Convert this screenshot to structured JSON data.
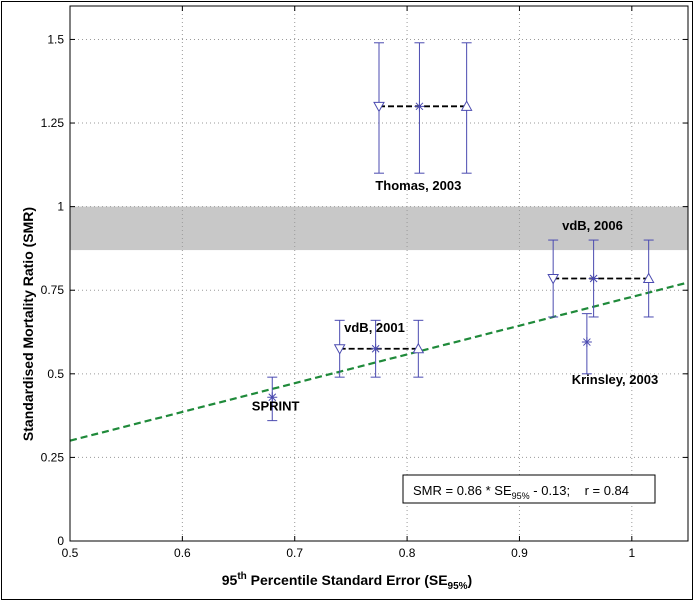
{
  "chart_data": {
    "type": "scatter",
    "xlabel": {
      "pre": "95",
      "sup": "th",
      "mid": " Percentile Standard Error (SE",
      "sub": "95%",
      "post": ")"
    },
    "ylabel": "Standardised Mortality Ratio (SMR)",
    "xlim": [
      0.5,
      1.05
    ],
    "ylim": [
      0,
      1.6
    ],
    "xticks": [
      {
        "value": 0.5,
        "label": "0.5"
      },
      {
        "value": 0.6,
        "label": "0.6"
      },
      {
        "value": 0.7,
        "label": "0.7"
      },
      {
        "value": 0.8,
        "label": "0.8"
      },
      {
        "value": 0.9,
        "label": "0.9"
      },
      {
        "value": 1.0,
        "label": "1"
      }
    ],
    "yticks": [
      {
        "value": 0,
        "label": "0"
      },
      {
        "value": 0.25,
        "label": "0.25"
      },
      {
        "value": 0.5,
        "label": "0.5"
      },
      {
        "value": 0.75,
        "label": "0.75"
      },
      {
        "value": 1.0,
        "label": "1"
      },
      {
        "value": 1.25,
        "label": "1.25"
      },
      {
        "value": 1.5,
        "label": "1.5"
      }
    ],
    "grid": true,
    "band": {
      "y0": 0.87,
      "y1": 1.0,
      "color": "#c8c8c8"
    },
    "colors": {
      "axis": "#000000",
      "grid": "#9a9a9a",
      "marker": "#4b4bb0",
      "connector": "#000000",
      "fit": "#1f8a3a"
    },
    "studies": [
      {
        "label": "SPRINT",
        "label_at": {
          "x": 0.683,
          "y": 0.39
        },
        "points": [
          {
            "x": 0.68,
            "y": 0.43,
            "lo": 0.36,
            "hi": 0.49,
            "marker": "star"
          }
        ]
      },
      {
        "label": "vdB, 2001",
        "label_at": {
          "x": 0.771,
          "y": 0.625
        },
        "points": [
          {
            "x": 0.74,
            "y": 0.575,
            "lo": 0.49,
            "hi": 0.66,
            "marker": "triangle-down"
          },
          {
            "x": 0.772,
            "y": 0.575,
            "lo": 0.49,
            "hi": 0.66,
            "marker": "star"
          },
          {
            "x": 0.81,
            "y": 0.575,
            "lo": 0.49,
            "hi": 0.66,
            "marker": "triangle-up"
          }
        ],
        "connect": true
      },
      {
        "label": "Thomas, 2003",
        "label_at": {
          "x": 0.81,
          "y": 1.05
        },
        "points": [
          {
            "x": 0.775,
            "y": 1.3,
            "lo": 1.1,
            "hi": 1.49,
            "marker": "triangle-down"
          },
          {
            "x": 0.811,
            "y": 1.3,
            "lo": 1.1,
            "hi": 1.49,
            "marker": "star"
          },
          {
            "x": 0.853,
            "y": 1.3,
            "lo": 1.1,
            "hi": 1.49,
            "marker": "triangle-up"
          }
        ],
        "connect": true
      },
      {
        "label": "vdB, 2006",
        "label_at": {
          "x": 0.965,
          "y": 0.93
        },
        "points": [
          {
            "x": 0.93,
            "y": 0.785,
            "lo": 0.67,
            "hi": 0.9,
            "marker": "triangle-down"
          },
          {
            "x": 0.966,
            "y": 0.785,
            "lo": 0.67,
            "hi": 0.9,
            "marker": "star"
          },
          {
            "x": 1.015,
            "y": 0.785,
            "lo": 0.67,
            "hi": 0.9,
            "marker": "triangle-up"
          }
        ],
        "connect": true
      },
      {
        "label": "Krinsley, 2003",
        "label_at": {
          "x": 0.985,
          "y": 0.47
        },
        "points": [
          {
            "x": 0.96,
            "y": 0.595,
            "lo": 0.5,
            "hi": 0.68,
            "marker": "star"
          }
        ]
      }
    ],
    "fit_line": {
      "slope": 0.86,
      "intercept": -0.13,
      "x0": 0.5,
      "x1": 1.05
    },
    "annotation": {
      "text": "SMR = 0.86 * SE",
      "sub": "95%",
      "after": " - 0.13;    r = 0.84"
    }
  }
}
